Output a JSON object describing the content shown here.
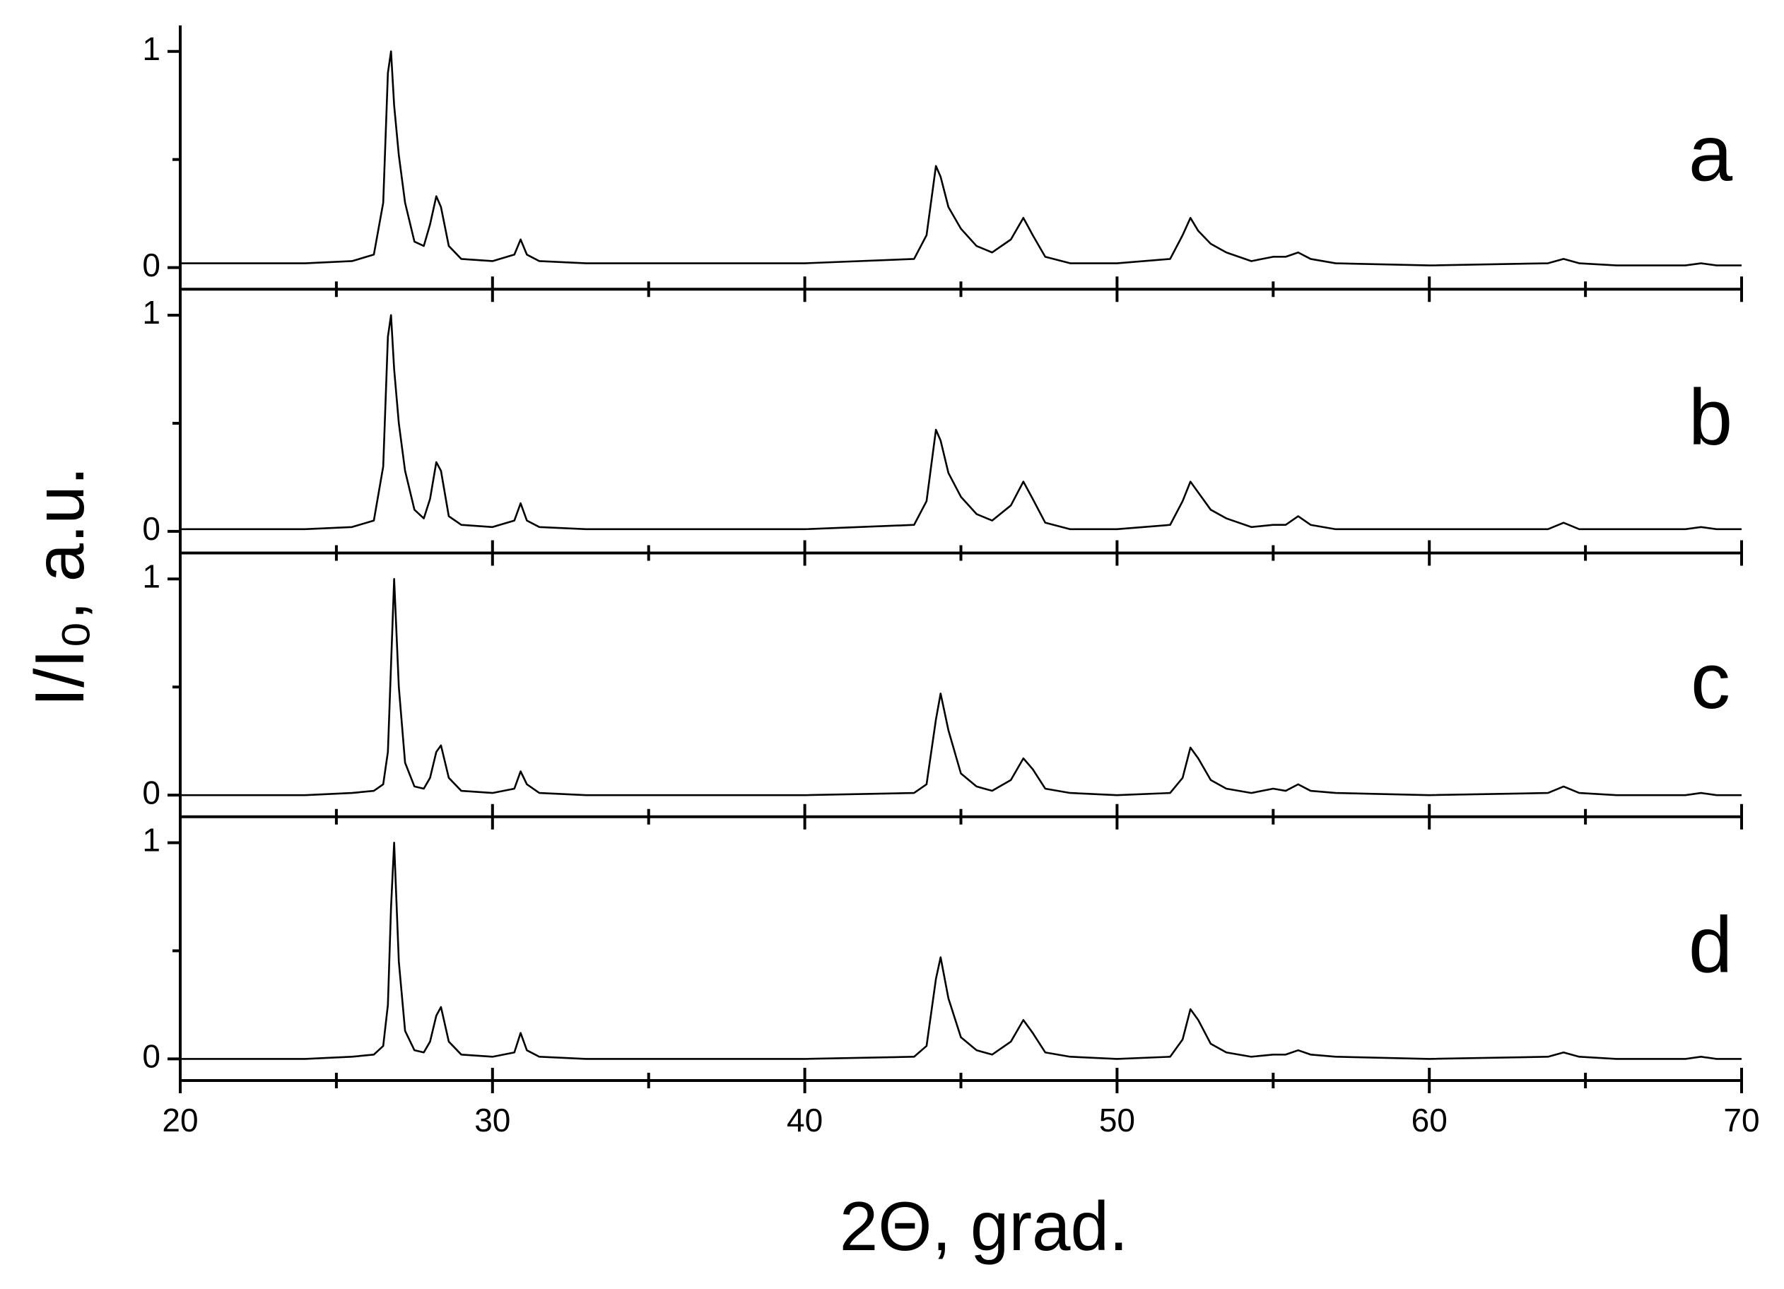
{
  "xlabel": "2Θ, grad.",
  "ylabel": "I/I₀, a.u.",
  "chart_data": [
    {
      "type": "line",
      "label": "a",
      "color": "#000000",
      "x": [
        20,
        22,
        24,
        25.5,
        26.2,
        26.5,
        26.65,
        26.75,
        26.85,
        27.0,
        27.2,
        27.5,
        27.8,
        28.0,
        28.2,
        28.35,
        28.6,
        29.0,
        30.0,
        30.7,
        30.9,
        31.1,
        31.5,
        33,
        36,
        40,
        43.5,
        43.9,
        44.2,
        44.35,
        44.6,
        45.0,
        45.5,
        46.0,
        46.6,
        47.0,
        47.3,
        47.7,
        48.5,
        50,
        51.7,
        52.1,
        52.35,
        52.6,
        53.0,
        53.5,
        54.3,
        55.0,
        55.4,
        55.8,
        56.2,
        57,
        60,
        63.8,
        64.3,
        64.8,
        66,
        68.2,
        68.7,
        69.2,
        70
      ],
      "values": [
        0.02,
        0.02,
        0.02,
        0.03,
        0.06,
        0.3,
        0.9,
        1.0,
        0.75,
        0.52,
        0.3,
        0.12,
        0.1,
        0.2,
        0.33,
        0.28,
        0.1,
        0.04,
        0.03,
        0.06,
        0.13,
        0.06,
        0.03,
        0.02,
        0.02,
        0.02,
        0.04,
        0.15,
        0.47,
        0.42,
        0.28,
        0.18,
        0.1,
        0.07,
        0.13,
        0.23,
        0.15,
        0.05,
        0.02,
        0.02,
        0.04,
        0.15,
        0.23,
        0.17,
        0.11,
        0.07,
        0.03,
        0.05,
        0.05,
        0.07,
        0.04,
        0.02,
        0.01,
        0.02,
        0.04,
        0.02,
        0.01,
        0.01,
        0.02,
        0.01,
        0.01
      ],
      "xlim": [
        20,
        70
      ],
      "xticks": [
        20,
        30,
        40,
        50,
        60,
        70
      ],
      "xminorticks": [
        25,
        35,
        45,
        55,
        65
      ],
      "xtick_labels": false,
      "ylim": [
        -0.1,
        1.12
      ],
      "yticks": [
        0,
        1
      ],
      "yminorticks": [
        0.5
      ]
    },
    {
      "type": "line",
      "label": "b",
      "color": "#000000",
      "x": [
        20,
        22,
        24,
        25.5,
        26.2,
        26.5,
        26.65,
        26.75,
        26.85,
        27.0,
        27.2,
        27.5,
        27.8,
        28.0,
        28.2,
        28.35,
        28.6,
        29.0,
        30.0,
        30.7,
        30.9,
        31.1,
        31.5,
        33,
        36,
        40,
        43.5,
        43.9,
        44.2,
        44.35,
        44.6,
        45.0,
        45.5,
        46.0,
        46.6,
        47.0,
        47.3,
        47.7,
        48.5,
        50,
        51.7,
        52.1,
        52.35,
        52.6,
        53.0,
        53.5,
        54.3,
        55.0,
        55.4,
        55.8,
        56.2,
        57,
        60,
        63.8,
        64.3,
        64.8,
        66,
        68.2,
        68.7,
        69.2,
        70
      ],
      "values": [
        0.01,
        0.01,
        0.01,
        0.02,
        0.05,
        0.3,
        0.9,
        1.0,
        0.75,
        0.5,
        0.28,
        0.1,
        0.06,
        0.15,
        0.32,
        0.28,
        0.07,
        0.03,
        0.02,
        0.05,
        0.13,
        0.05,
        0.02,
        0.01,
        0.01,
        0.01,
        0.03,
        0.14,
        0.47,
        0.42,
        0.27,
        0.16,
        0.08,
        0.05,
        0.12,
        0.23,
        0.15,
        0.04,
        0.01,
        0.01,
        0.03,
        0.14,
        0.23,
        0.18,
        0.1,
        0.06,
        0.02,
        0.03,
        0.03,
        0.07,
        0.03,
        0.01,
        0.01,
        0.01,
        0.04,
        0.01,
        0.01,
        0.01,
        0.02,
        0.01,
        0.01
      ],
      "xlim": [
        20,
        70
      ],
      "xticks": [
        20,
        30,
        40,
        50,
        60,
        70
      ],
      "xminorticks": [
        25,
        35,
        45,
        55,
        65
      ],
      "xtick_labels": false,
      "ylim": [
        -0.1,
        1.12
      ],
      "yticks": [
        0,
        1
      ],
      "yminorticks": [
        0.5
      ]
    },
    {
      "type": "line",
      "label": "c",
      "color": "#000000",
      "x": [
        20,
        22,
        24,
        25.5,
        26.2,
        26.5,
        26.65,
        26.75,
        26.85,
        27.0,
        27.2,
        27.5,
        27.8,
        28.0,
        28.2,
        28.35,
        28.6,
        29.0,
        30.0,
        30.7,
        30.9,
        31.1,
        31.5,
        33,
        36,
        40,
        43.5,
        43.9,
        44.2,
        44.35,
        44.6,
        45.0,
        45.5,
        46.0,
        46.6,
        47.0,
        47.3,
        47.7,
        48.5,
        50,
        51.7,
        52.1,
        52.35,
        52.6,
        53.0,
        53.5,
        54.3,
        55.0,
        55.4,
        55.8,
        56.2,
        57,
        60,
        63.8,
        64.3,
        64.8,
        66,
        68.2,
        68.7,
        69.2,
        70
      ],
      "values": [
        0,
        0,
        0,
        0.01,
        0.02,
        0.05,
        0.2,
        0.6,
        1.0,
        0.5,
        0.15,
        0.04,
        0.03,
        0.08,
        0.2,
        0.23,
        0.08,
        0.02,
        0.01,
        0.03,
        0.11,
        0.05,
        0.01,
        0,
        0,
        0,
        0.01,
        0.05,
        0.35,
        0.47,
        0.3,
        0.1,
        0.04,
        0.02,
        0.07,
        0.17,
        0.12,
        0.03,
        0.01,
        0,
        0.01,
        0.08,
        0.22,
        0.17,
        0.07,
        0.03,
        0.01,
        0.03,
        0.02,
        0.05,
        0.02,
        0.01,
        0,
        0.01,
        0.04,
        0.01,
        0,
        0,
        0.01,
        0,
        0
      ],
      "xlim": [
        20,
        70
      ],
      "xticks": [
        20,
        30,
        40,
        50,
        60,
        70
      ],
      "xminorticks": [
        25,
        35,
        45,
        55,
        65
      ],
      "xtick_labels": false,
      "ylim": [
        -0.1,
        1.12
      ],
      "yticks": [
        0,
        1
      ],
      "yminorticks": [
        0.5
      ]
    },
    {
      "type": "line",
      "label": "d",
      "color": "#000000",
      "x": [
        20,
        22,
        24,
        25.5,
        26.2,
        26.5,
        26.65,
        26.75,
        26.85,
        27.0,
        27.2,
        27.5,
        27.8,
        28.0,
        28.2,
        28.35,
        28.6,
        29.0,
        30.0,
        30.7,
        30.9,
        31.1,
        31.5,
        33,
        36,
        40,
        43.5,
        43.9,
        44.2,
        44.35,
        44.6,
        45.0,
        45.5,
        46.0,
        46.6,
        47.0,
        47.3,
        47.7,
        48.5,
        50,
        51.7,
        52.1,
        52.35,
        52.6,
        53.0,
        53.5,
        54.3,
        55.0,
        55.4,
        55.8,
        56.2,
        57,
        60,
        63.8,
        64.3,
        64.8,
        66,
        68.2,
        68.7,
        69.2,
        70
      ],
      "values": [
        0,
        0,
        0,
        0.01,
        0.02,
        0.06,
        0.25,
        0.7,
        1.0,
        0.45,
        0.13,
        0.04,
        0.03,
        0.08,
        0.2,
        0.24,
        0.08,
        0.02,
        0.01,
        0.03,
        0.12,
        0.04,
        0.01,
        0,
        0,
        0,
        0.01,
        0.06,
        0.37,
        0.47,
        0.28,
        0.1,
        0.04,
        0.02,
        0.08,
        0.18,
        0.12,
        0.03,
        0.01,
        0,
        0.01,
        0.09,
        0.23,
        0.18,
        0.07,
        0.03,
        0.01,
        0.02,
        0.02,
        0.04,
        0.02,
        0.01,
        0,
        0.01,
        0.03,
        0.01,
        0,
        0,
        0.01,
        0,
        0
      ],
      "xlim": [
        20,
        70
      ],
      "xticks": [
        20,
        30,
        40,
        50,
        60,
        70
      ],
      "xminorticks": [
        25,
        35,
        45,
        55,
        65
      ],
      "xtick_labels": true,
      "ylim": [
        -0.1,
        1.12
      ],
      "yticks": [
        0,
        1
      ],
      "yminorticks": [
        0.5
      ]
    }
  ]
}
